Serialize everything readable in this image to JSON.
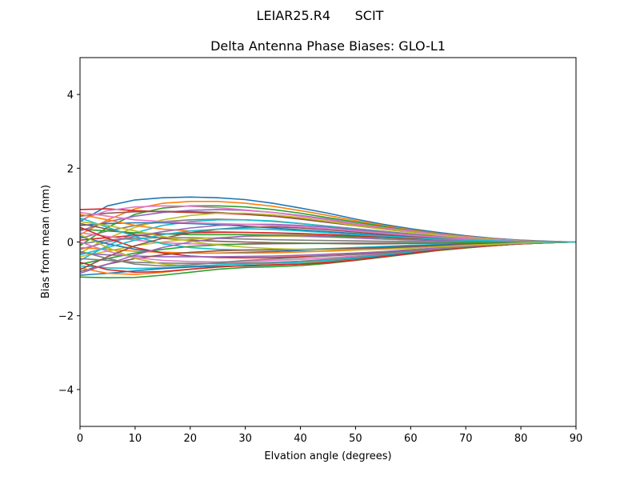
{
  "figure": {
    "suptitle": "LEIAR25.R4      SCIT",
    "title": "Delta Antenna Phase Biases: GLO-L1"
  },
  "chart_data": {
    "type": "line",
    "title": "Delta Antenna Phase Biases: GLO-L1",
    "suptitle": "LEIAR25.R4      SCIT",
    "xlabel": "Elvation angle (degrees)",
    "ylabel": "Bias from mean (mm)",
    "xlim": [
      0,
      90
    ],
    "ylim": [
      -5,
      5
    ],
    "xticks": [
      0,
      10,
      20,
      30,
      40,
      50,
      60,
      70,
      80,
      90
    ],
    "yticks": [
      -4,
      -2,
      0,
      2,
      4
    ],
    "ytick_labels": [
      "−4",
      "−2",
      "0",
      "2",
      "4"
    ],
    "grid": false,
    "legend": "none",
    "x": [
      0,
      5,
      10,
      15,
      20,
      25,
      30,
      35,
      40,
      45,
      50,
      55,
      60,
      65,
      70,
      75,
      80,
      85,
      90
    ],
    "colors": [
      "#1f77b4",
      "#ff7f0e",
      "#2ca02c",
      "#d62728",
      "#9467bd",
      "#8c564b",
      "#e377c2",
      "#7f7f7f",
      "#bcbd22",
      "#17becf"
    ],
    "series": [
      {
        "name": "s1",
        "values": [
          0.55,
          0.98,
          1.14,
          1.2,
          1.22,
          1.2,
          1.15,
          1.05,
          0.92,
          0.78,
          0.62,
          0.48,
          0.36,
          0.26,
          0.17,
          0.1,
          0.05,
          0.02,
          0.0
        ]
      },
      {
        "name": "s2",
        "values": [
          0.2,
          0.6,
          0.9,
          1.05,
          1.1,
          1.1,
          1.05,
          0.97,
          0.85,
          0.72,
          0.58,
          0.45,
          0.33,
          0.23,
          0.15,
          0.09,
          0.04,
          0.01,
          0.0
        ]
      },
      {
        "name": "s3",
        "values": [
          -0.1,
          0.4,
          0.75,
          0.92,
          0.98,
          0.98,
          0.95,
          0.88,
          0.78,
          0.66,
          0.54,
          0.42,
          0.31,
          0.22,
          0.14,
          0.08,
          0.04,
          0.01,
          0.0
        ]
      },
      {
        "name": "s4",
        "values": [
          0.88,
          0.9,
          0.85,
          0.82,
          0.8,
          0.78,
          0.75,
          0.7,
          0.64,
          0.56,
          0.47,
          0.38,
          0.29,
          0.2,
          0.13,
          0.08,
          0.04,
          0.01,
          0.0
        ]
      },
      {
        "name": "s5",
        "values": [
          0.3,
          0.55,
          0.7,
          0.8,
          0.86,
          0.88,
          0.86,
          0.8,
          0.72,
          0.62,
          0.5,
          0.39,
          0.29,
          0.2,
          0.13,
          0.07,
          0.03,
          0.01,
          0.0
        ]
      },
      {
        "name": "s6",
        "values": [
          0.7,
          0.78,
          0.82,
          0.83,
          0.82,
          0.8,
          0.76,
          0.7,
          0.62,
          0.53,
          0.44,
          0.35,
          0.26,
          0.18,
          0.12,
          0.07,
          0.03,
          0.01,
          0.0
        ]
      },
      {
        "name": "s7",
        "values": [
          0.6,
          0.85,
          0.95,
          0.98,
          0.97,
          0.93,
          0.87,
          0.8,
          0.7,
          0.6,
          0.49,
          0.39,
          0.3,
          0.21,
          0.14,
          0.08,
          0.04,
          0.01,
          0.0
        ]
      },
      {
        "name": "s8",
        "values": [
          0.1,
          0.3,
          0.45,
          0.55,
          0.6,
          0.62,
          0.6,
          0.56,
          0.5,
          0.43,
          0.36,
          0.29,
          0.22,
          0.15,
          0.1,
          0.06,
          0.03,
          0.01,
          0.0
        ]
      },
      {
        "name": "s9",
        "values": [
          -0.3,
          0.1,
          0.4,
          0.6,
          0.72,
          0.78,
          0.78,
          0.74,
          0.66,
          0.56,
          0.45,
          0.35,
          0.26,
          0.18,
          0.12,
          0.07,
          0.03,
          0.01,
          0.0
        ]
      },
      {
        "name": "s10",
        "values": [
          -0.5,
          -0.1,
          0.25,
          0.45,
          0.55,
          0.6,
          0.6,
          0.57,
          0.5,
          0.42,
          0.34,
          0.27,
          0.2,
          0.14,
          0.09,
          0.05,
          0.02,
          0.01,
          0.0
        ]
      },
      {
        "name": "s11",
        "values": [
          0.45,
          0.5,
          0.52,
          0.52,
          0.5,
          0.47,
          0.43,
          0.38,
          0.33,
          0.28,
          0.23,
          0.18,
          0.14,
          0.1,
          0.06,
          0.04,
          0.02,
          0.01,
          0.0
        ]
      },
      {
        "name": "s12",
        "values": [
          0.75,
          0.6,
          0.45,
          0.35,
          0.3,
          0.28,
          0.26,
          0.24,
          0.22,
          0.2,
          0.17,
          0.14,
          0.11,
          0.08,
          0.05,
          0.03,
          0.02,
          0.01,
          0.0
        ]
      },
      {
        "name": "s13",
        "values": [
          0.35,
          0.3,
          0.25,
          0.22,
          0.2,
          0.2,
          0.2,
          0.19,
          0.18,
          0.16,
          0.14,
          0.12,
          0.09,
          0.07,
          0.05,
          0.03,
          0.01,
          0.0,
          0.0
        ]
      },
      {
        "name": "s14",
        "values": [
          0.05,
          0.12,
          0.18,
          0.22,
          0.25,
          0.26,
          0.26,
          0.25,
          0.23,
          0.2,
          0.17,
          0.14,
          0.1,
          0.07,
          0.05,
          0.03,
          0.01,
          0.0,
          0.0
        ]
      },
      {
        "name": "s15",
        "values": [
          -0.2,
          0.0,
          0.15,
          0.28,
          0.38,
          0.45,
          0.48,
          0.48,
          0.45,
          0.4,
          0.33,
          0.26,
          0.2,
          0.14,
          0.09,
          0.05,
          0.02,
          0.01,
          0.0
        ]
      },
      {
        "name": "s16",
        "values": [
          0.5,
          0.35,
          0.2,
          0.1,
          0.05,
          0.02,
          0.0,
          -0.02,
          -0.03,
          -0.04,
          -0.05,
          -0.05,
          -0.04,
          -0.03,
          -0.02,
          -0.01,
          -0.01,
          0.0,
          0.0
        ]
      },
      {
        "name": "s17",
        "values": [
          0.25,
          0.15,
          0.05,
          -0.02,
          -0.05,
          -0.06,
          -0.06,
          -0.05,
          -0.04,
          -0.03,
          -0.02,
          -0.02,
          -0.01,
          -0.01,
          -0.01,
          0.0,
          0.0,
          0.0,
          0.0
        ]
      },
      {
        "name": "s18",
        "values": [
          -0.05,
          0.05,
          0.1,
          0.12,
          0.12,
          0.1,
          0.08,
          0.06,
          0.05,
          0.04,
          0.03,
          0.02,
          0.02,
          0.01,
          0.01,
          0.0,
          0.0,
          0.0,
          0.0
        ]
      },
      {
        "name": "s19",
        "values": [
          -0.4,
          -0.25,
          -0.1,
          0.0,
          0.08,
          0.12,
          0.15,
          0.16,
          0.15,
          0.13,
          0.11,
          0.08,
          0.06,
          0.04,
          0.03,
          0.02,
          0.01,
          0.0,
          0.0
        ]
      },
      {
        "name": "s20",
        "values": [
          0.65,
          0.4,
          0.15,
          -0.05,
          -0.15,
          -0.2,
          -0.22,
          -0.22,
          -0.2,
          -0.18,
          -0.15,
          -0.12,
          -0.09,
          -0.07,
          -0.05,
          -0.03,
          -0.02,
          -0.01,
          0.0
        ]
      },
      {
        "name": "s21",
        "values": [
          0.15,
          -0.05,
          -0.2,
          -0.28,
          -0.3,
          -0.3,
          -0.28,
          -0.26,
          -0.23,
          -0.2,
          -0.17,
          -0.14,
          -0.11,
          -0.08,
          -0.05,
          -0.03,
          -0.02,
          -0.01,
          0.0
        ]
      },
      {
        "name": "s22",
        "values": [
          -0.15,
          -0.2,
          -0.25,
          -0.28,
          -0.3,
          -0.3,
          -0.3,
          -0.29,
          -0.27,
          -0.25,
          -0.22,
          -0.19,
          -0.15,
          -0.11,
          -0.08,
          -0.05,
          -0.03,
          -0.01,
          0.0
        ]
      },
      {
        "name": "s23",
        "values": [
          -0.6,
          -0.45,
          -0.3,
          -0.2,
          -0.12,
          -0.08,
          -0.05,
          -0.04,
          -0.04,
          -0.04,
          -0.04,
          -0.04,
          -0.03,
          -0.03,
          -0.02,
          -0.01,
          -0.01,
          0.0,
          0.0
        ]
      },
      {
        "name": "s24",
        "values": [
          0.4,
          0.1,
          -0.15,
          -0.3,
          -0.38,
          -0.42,
          -0.43,
          -0.42,
          -0.4,
          -0.37,
          -0.33,
          -0.28,
          -0.22,
          -0.16,
          -0.11,
          -0.07,
          -0.04,
          -0.01,
          0.0
        ]
      },
      {
        "name": "s25",
        "values": [
          -0.3,
          -0.35,
          -0.38,
          -0.4,
          -0.4,
          -0.4,
          -0.39,
          -0.38,
          -0.36,
          -0.33,
          -0.3,
          -0.26,
          -0.21,
          -0.16,
          -0.11,
          -0.07,
          -0.04,
          -0.01,
          0.0
        ]
      },
      {
        "name": "s26",
        "values": [
          -0.8,
          -0.6,
          -0.45,
          -0.35,
          -0.28,
          -0.24,
          -0.22,
          -0.21,
          -0.2,
          -0.19,
          -0.18,
          -0.16,
          -0.13,
          -0.1,
          -0.07,
          -0.05,
          -0.03,
          -0.01,
          0.0
        ]
      },
      {
        "name": "s27",
        "values": [
          0.0,
          -0.25,
          -0.42,
          -0.5,
          -0.53,
          -0.54,
          -0.53,
          -0.5,
          -0.47,
          -0.43,
          -0.38,
          -0.32,
          -0.25,
          -0.18,
          -0.12,
          -0.08,
          -0.04,
          -0.01,
          0.0
        ]
      },
      {
        "name": "s28",
        "values": [
          -0.45,
          -0.5,
          -0.55,
          -0.57,
          -0.58,
          -0.58,
          -0.57,
          -0.55,
          -0.52,
          -0.47,
          -0.41,
          -0.34,
          -0.27,
          -0.2,
          -0.14,
          -0.09,
          -0.05,
          -0.02,
          0.0
        ]
      },
      {
        "name": "s29",
        "values": [
          0.2,
          -0.15,
          -0.45,
          -0.6,
          -0.65,
          -0.66,
          -0.65,
          -0.62,
          -0.58,
          -0.52,
          -0.45,
          -0.37,
          -0.29,
          -0.21,
          -0.14,
          -0.09,
          -0.05,
          -0.02,
          0.0
        ]
      },
      {
        "name": "s30",
        "values": [
          -0.65,
          -0.7,
          -0.72,
          -0.7,
          -0.66,
          -0.62,
          -0.6,
          -0.58,
          -0.55,
          -0.5,
          -0.43,
          -0.36,
          -0.28,
          -0.2,
          -0.14,
          -0.09,
          -0.05,
          -0.02,
          0.0
        ]
      },
      {
        "name": "s31",
        "values": [
          -0.9,
          -0.85,
          -0.78,
          -0.72,
          -0.68,
          -0.66,
          -0.65,
          -0.63,
          -0.6,
          -0.54,
          -0.46,
          -0.38,
          -0.3,
          -0.22,
          -0.15,
          -0.1,
          -0.05,
          -0.02,
          0.0
        ]
      },
      {
        "name": "s32",
        "values": [
          -0.7,
          -0.85,
          -0.88,
          -0.82,
          -0.74,
          -0.68,
          -0.64,
          -0.62,
          -0.6,
          -0.55,
          -0.48,
          -0.4,
          -0.32,
          -0.23,
          -0.16,
          -0.1,
          -0.05,
          -0.02,
          0.0
        ]
      },
      {
        "name": "s33",
        "values": [
          -0.95,
          -0.97,
          -0.96,
          -0.9,
          -0.82,
          -0.74,
          -0.69,
          -0.67,
          -0.64,
          -0.58,
          -0.5,
          -0.41,
          -0.32,
          -0.23,
          -0.16,
          -0.1,
          -0.05,
          -0.02,
          0.0
        ]
      },
      {
        "name": "s34",
        "values": [
          -0.55,
          -0.75,
          -0.82,
          -0.8,
          -0.74,
          -0.68,
          -0.64,
          -0.62,
          -0.6,
          -0.56,
          -0.49,
          -0.4,
          -0.31,
          -0.22,
          -0.15,
          -0.1,
          -0.05,
          -0.02,
          0.0
        ]
      },
      {
        "name": "s35",
        "values": [
          -0.85,
          -0.6,
          -0.35,
          -0.15,
          0.0,
          0.1,
          0.16,
          0.18,
          0.17,
          0.14,
          0.11,
          0.08,
          0.06,
          0.04,
          0.03,
          0.02,
          0.01,
          0.0,
          0.0
        ]
      },
      {
        "name": "s36",
        "values": [
          -0.75,
          -0.4,
          -0.1,
          0.1,
          0.25,
          0.35,
          0.4,
          0.41,
          0.38,
          0.33,
          0.27,
          0.21,
          0.16,
          0.11,
          0.07,
          0.04,
          0.02,
          0.01,
          0.0
        ]
      },
      {
        "name": "s37",
        "values": [
          0.8,
          0.7,
          0.6,
          0.55,
          0.52,
          0.5,
          0.48,
          0.45,
          0.41,
          0.36,
          0.3,
          0.24,
          0.18,
          0.13,
          0.08,
          0.05,
          0.02,
          0.01,
          0.0
        ]
      },
      {
        "name": "s38",
        "values": [
          -0.25,
          -0.45,
          -0.6,
          -0.65,
          -0.62,
          -0.56,
          -0.5,
          -0.46,
          -0.42,
          -0.38,
          -0.34,
          -0.3,
          -0.25,
          -0.19,
          -0.13,
          -0.08,
          -0.04,
          -0.01,
          0.0
        ]
      },
      {
        "name": "s39",
        "values": [
          0.55,
          0.45,
          0.3,
          0.15,
          0.02,
          -0.08,
          -0.14,
          -0.18,
          -0.2,
          -0.21,
          -0.21,
          -0.2,
          -0.17,
          -0.13,
          -0.09,
          -0.06,
          -0.03,
          -0.01,
          0.0
        ]
      },
      {
        "name": "s40",
        "values": [
          -0.35,
          -0.15,
          0.05,
          0.2,
          0.3,
          0.35,
          0.36,
          0.34,
          0.3,
          0.25,
          0.2,
          0.16,
          0.12,
          0.08,
          0.05,
          0.03,
          0.01,
          0.0,
          0.0
        ]
      }
    ]
  }
}
